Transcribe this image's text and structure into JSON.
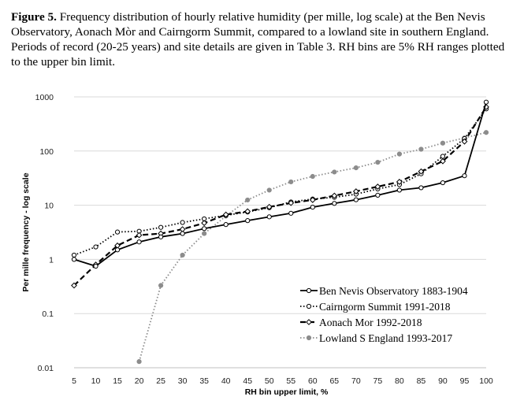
{
  "caption": {
    "lead": "Figure 5.",
    "text": " Frequency distribution of hourly relative humidity (per mille, log scale) at the Ben Nevis Observatory, Aonach Mòr and Cairngorm Summit, compared to a lowland site in southern England. Periods of record (20-25 years) and site details are given in Table 3. RH bins are 5% RH ranges plotted to the upper bin limit."
  },
  "chart_data": {
    "type": "line",
    "xlabel": "RH bin upper limit, %",
    "ylabel": "Per mille frequency - log scale",
    "yscale": "log",
    "ylim": [
      0.01,
      1000
    ],
    "y_ticks": [
      "0.01",
      "0.1",
      "1",
      "10",
      "100",
      "1000"
    ],
    "x_ticks": [
      "5",
      "10",
      "15",
      "20",
      "25",
      "30",
      "35",
      "40",
      "45",
      "50",
      "55",
      "60",
      "65",
      "70",
      "75",
      "80",
      "85",
      "90",
      "95",
      "100"
    ],
    "x": [
      5,
      10,
      15,
      20,
      25,
      30,
      35,
      40,
      45,
      50,
      55,
      60,
      65,
      70,
      75,
      80,
      85,
      90,
      95,
      100
    ],
    "legend_position": "bottom-right",
    "series": [
      {
        "name": "Ben Nevis Observatory 1883-1904",
        "color": "#000000",
        "style": "solid",
        "marker": "open-circle",
        "values": [
          1.0,
          0.75,
          1.5,
          2.1,
          2.6,
          3.0,
          3.7,
          4.4,
          5.2,
          6.1,
          7.1,
          9.2,
          10.8,
          12.6,
          15.3,
          19.0,
          21.0,
          26.0,
          35.0,
          800
        ]
      },
      {
        "name": "Cairngorm Summit 1991-2018",
        "color": "#000000",
        "style": "dotted",
        "marker": "open-circle",
        "values": [
          1.2,
          1.7,
          3.2,
          3.3,
          3.9,
          4.8,
          5.6,
          6.5,
          7.5,
          9.0,
          11.5,
          13.0,
          14.0,
          16.0,
          20.0,
          24.0,
          38.0,
          80.0,
          170.0,
          600
        ]
      },
      {
        "name": "Aonach Mor 1992-2018",
        "color": "#000000",
        "style": "dashed",
        "marker": "open-diamond",
        "values": [
          0.33,
          0.8,
          1.8,
          2.8,
          3.0,
          3.6,
          4.7,
          6.7,
          7.7,
          9.3,
          11.0,
          12.5,
          15.0,
          18.0,
          22.0,
          27.0,
          42.0,
          65.0,
          150.0,
          650
        ]
      },
      {
        "name": "Lowland S England 1993-2017",
        "color": "#8c8c8c",
        "style": "dotted",
        "marker": "filled-circle",
        "values": [
          null,
          null,
          null,
          0.013,
          0.33,
          1.2,
          3.0,
          6.3,
          12.5,
          19.0,
          27.0,
          34.0,
          41.0,
          49.0,
          62.0,
          88.0,
          108.0,
          140.0,
          175.0,
          220.0
        ]
      }
    ]
  }
}
